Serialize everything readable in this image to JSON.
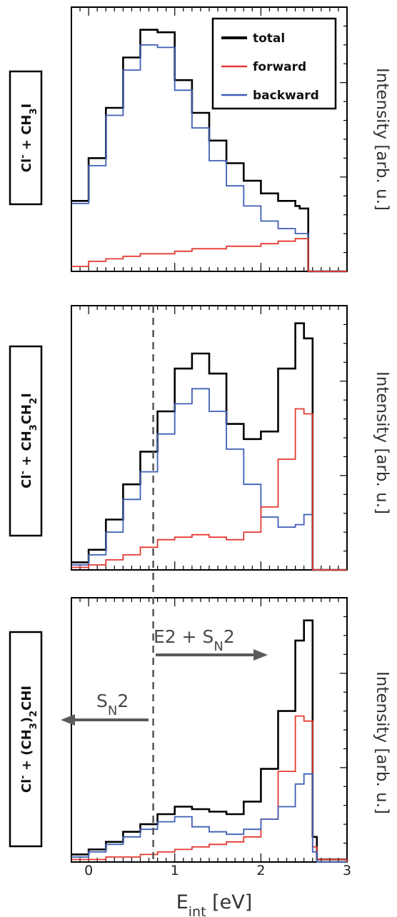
{
  "colors": {
    "total": "#000000",
    "forward": "#e33a32",
    "backward": "#3f5fb5",
    "annotation": "#5a5a5a"
  },
  "chart_data": {
    "type": "line",
    "step": true,
    "shared_x_axis": true,
    "xlabel": "E",
    "xlabel_sub": "int",
    "xlabel_unit": " [eV]",
    "xlim": [
      -0.2,
      3.0
    ],
    "xticks": [
      "0",
      "1",
      "2",
      "3"
    ],
    "ylabel": "Intensity [arb. u.]",
    "legend": {
      "placement": "top-right",
      "entries": [
        "total",
        "forward",
        "backward"
      ]
    },
    "annotations": {
      "left_arrow_main": "S",
      "left_arrow_sub": "N",
      "left_arrow_tail": "2",
      "right_arrow_prefix": "E2 + S",
      "right_arrow_sub": "N",
      "right_arrow_tail": "2",
      "vline_x": 0.75
    },
    "panels": [
      {
        "reaction": {
          "pre": "Cl",
          "sup": "-",
          "post": " + CH",
          "sub1": "3",
          "tail": "I",
          "sub2": "",
          "tail2": ""
        },
        "ylim": [
          0,
          1.05
        ],
        "series": [
          {
            "key": "total",
            "x": [
              -0.2,
              0.0,
              0.2,
              0.4,
              0.6,
              0.8,
              1.0,
              1.2,
              1.4,
              1.6,
              1.8,
              2.0,
              2.2,
              2.4,
              2.45,
              2.55,
              2.6,
              3.0
            ],
            "y": [
              0.28,
              0.45,
              0.65,
              0.85,
              0.96,
              0.95,
              0.76,
              0.63,
              0.52,
              0.43,
              0.36,
              0.31,
              0.28,
              0.26,
              0.25,
              0.0,
              0.0,
              0.0
            ]
          },
          {
            "key": "backward",
            "x": [
              -0.2,
              0.0,
              0.2,
              0.4,
              0.6,
              0.8,
              1.0,
              1.2,
              1.4,
              1.6,
              1.8,
              2.0,
              2.2,
              2.4,
              2.45,
              2.55,
              2.6,
              3.0
            ],
            "y": [
              0.27,
              0.42,
              0.62,
              0.8,
              0.9,
              0.89,
              0.72,
              0.57,
              0.44,
              0.34,
              0.26,
              0.2,
              0.17,
              0.15,
              0.15,
              0.0,
              0.0,
              0.0
            ]
          },
          {
            "key": "forward",
            "x": [
              -0.2,
              0.0,
              0.2,
              0.4,
              0.6,
              0.8,
              1.0,
              1.2,
              1.4,
              1.6,
              1.8,
              2.0,
              2.2,
              2.4,
              2.45,
              2.55,
              2.6,
              3.0
            ],
            "y": [
              0.02,
              0.04,
              0.05,
              0.06,
              0.07,
              0.07,
              0.08,
              0.09,
              0.09,
              0.1,
              0.1,
              0.11,
              0.12,
              0.13,
              0.13,
              0.0,
              0.0,
              0.0
            ]
          }
        ]
      },
      {
        "reaction": {
          "pre": "Cl",
          "sup": "-",
          "post": " + CH",
          "sub1": "3",
          "tail": "CH",
          "sub2": "2",
          "tail2": "I"
        },
        "ylim": [
          0,
          1.05
        ],
        "series": [
          {
            "key": "total",
            "x": [
              -0.2,
              0.0,
              0.2,
              0.4,
              0.6,
              0.8,
              1.0,
              1.2,
              1.4,
              1.6,
              1.8,
              2.0,
              2.2,
              2.4,
              2.5,
              2.6,
              2.65,
              3.0
            ],
            "y": [
              0.03,
              0.08,
              0.2,
              0.34,
              0.47,
              0.63,
              0.8,
              0.86,
              0.78,
              0.58,
              0.52,
              0.55,
              0.8,
              0.98,
              0.92,
              0.0,
              0.0,
              0.0
            ]
          },
          {
            "key": "backward",
            "x": [
              -0.2,
              0.0,
              0.2,
              0.4,
              0.6,
              0.8,
              1.0,
              1.2,
              1.4,
              1.6,
              1.8,
              2.0,
              2.2,
              2.4,
              2.5,
              2.6,
              2.65,
              3.0
            ],
            "y": [
              0.02,
              0.06,
              0.15,
              0.28,
              0.39,
              0.54,
              0.66,
              0.72,
              0.63,
              0.48,
              0.34,
              0.21,
              0.17,
              0.18,
              0.22,
              0.0,
              0.0,
              0.0
            ]
          },
          {
            "key": "forward",
            "x": [
              -0.2,
              0.0,
              0.2,
              0.4,
              0.6,
              0.8,
              1.0,
              1.2,
              1.4,
              1.6,
              1.8,
              2.0,
              2.2,
              2.4,
              2.5,
              2.6,
              2.65,
              3.0
            ],
            "y": [
              0.01,
              0.02,
              0.04,
              0.06,
              0.09,
              0.12,
              0.13,
              0.14,
              0.13,
              0.12,
              0.15,
              0.25,
              0.44,
              0.64,
              0.62,
              0.0,
              0.0,
              0.0
            ]
          }
        ]
      },
      {
        "reaction": {
          "pre": "Cl",
          "sup": "-",
          "post": " + (CH",
          "sub1": "3",
          "tail": ")",
          "sub2": "2",
          "tail2": "CHI"
        },
        "ylim": [
          0,
          1.05
        ],
        "series": [
          {
            "key": "total",
            "x": [
              -0.2,
              0.0,
              0.2,
              0.4,
              0.6,
              0.8,
              1.0,
              1.2,
              1.4,
              1.6,
              1.8,
              2.0,
              2.2,
              2.4,
              2.5,
              2.6,
              2.65,
              3.0
            ],
            "y": [
              0.03,
              0.05,
              0.08,
              0.12,
              0.15,
              0.19,
              0.22,
              0.21,
              0.2,
              0.19,
              0.24,
              0.37,
              0.6,
              0.88,
              0.96,
              0.1,
              0.01,
              0.0
            ]
          },
          {
            "key": "forward",
            "x": [
              -0.2,
              0.0,
              0.2,
              0.4,
              0.6,
              0.8,
              1.0,
              1.2,
              1.4,
              1.6,
              1.8,
              2.0,
              2.2,
              2.4,
              2.5,
              2.6,
              2.65,
              3.0
            ],
            "y": [
              0.01,
              0.01,
              0.02,
              0.02,
              0.03,
              0.04,
              0.05,
              0.06,
              0.07,
              0.08,
              0.1,
              0.17,
              0.36,
              0.58,
              0.56,
              0.06,
              0.01,
              0.0
            ]
          },
          {
            "key": "backward",
            "x": [
              -0.2,
              0.0,
              0.2,
              0.4,
              0.6,
              0.8,
              1.0,
              1.2,
              1.4,
              1.6,
              1.8,
              2.0,
              2.2,
              2.4,
              2.5,
              2.6,
              2.65,
              3.0
            ],
            "y": [
              0.02,
              0.04,
              0.07,
              0.1,
              0.13,
              0.16,
              0.18,
              0.14,
              0.12,
              0.11,
              0.13,
              0.17,
              0.22,
              0.31,
              0.35,
              0.04,
              0.0,
              0.0
            ]
          }
        ]
      }
    ]
  }
}
